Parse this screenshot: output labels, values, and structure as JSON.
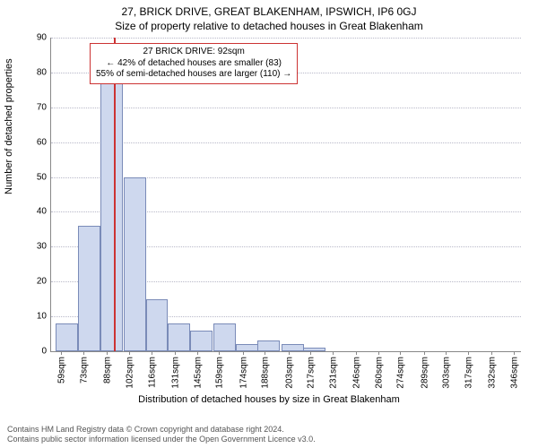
{
  "chart": {
    "type": "histogram",
    "title_line1": "27, BRICK DRIVE, GREAT BLAKENHAM, IPSWICH, IP6 0GJ",
    "title_line2": "Size of property relative to detached houses in Great Blakenham",
    "y_axis_label": "Number of detached properties",
    "x_axis_label": "Distribution of detached houses by size in Great Blakenham",
    "x_min": 52,
    "x_max": 350,
    "y_min": 0,
    "y_max": 90,
    "y_tick_step": 10,
    "y_ticks": [
      0,
      10,
      20,
      30,
      40,
      50,
      60,
      70,
      80,
      90
    ],
    "x_tick_labels": [
      "59sqm",
      "73sqm",
      "88sqm",
      "102sqm",
      "116sqm",
      "131sqm",
      "145sqm",
      "159sqm",
      "174sqm",
      "188sqm",
      "203sqm",
      "217sqm",
      "231sqm",
      "246sqm",
      "260sqm",
      "274sqm",
      "289sqm",
      "303sqm",
      "317sqm",
      "332sqm",
      "346sqm"
    ],
    "x_tick_positions": [
      59,
      73,
      88,
      102,
      116,
      131,
      145,
      159,
      174,
      188,
      203,
      217,
      231,
      246,
      260,
      274,
      289,
      303,
      317,
      332,
      346
    ],
    "bin_width": 14.2,
    "bars": [
      {
        "x": 55,
        "h": 8
      },
      {
        "x": 69,
        "h": 36
      },
      {
        "x": 83.5,
        "h": 83
      },
      {
        "x": 98,
        "h": 50
      },
      {
        "x": 112,
        "h": 15
      },
      {
        "x": 126,
        "h": 8
      },
      {
        "x": 140,
        "h": 6
      },
      {
        "x": 155,
        "h": 8
      },
      {
        "x": 169,
        "h": 2
      },
      {
        "x": 183,
        "h": 3
      },
      {
        "x": 198,
        "h": 2
      },
      {
        "x": 212,
        "h": 1
      },
      {
        "x": 226,
        "h": 0
      },
      {
        "x": 240,
        "h": 0
      },
      {
        "x": 255,
        "h": 0
      },
      {
        "x": 269,
        "h": 0
      },
      {
        "x": 283,
        "h": 0
      },
      {
        "x": 298,
        "h": 0
      },
      {
        "x": 312,
        "h": 0
      },
      {
        "x": 326,
        "h": 0
      },
      {
        "x": 340,
        "h": 0
      }
    ],
    "bar_fill": "#ced8ee",
    "bar_stroke": "#7a8bb8",
    "grid_color": "#b8b8c8",
    "background_color": "#ffffff",
    "marker_value": 92,
    "marker_color": "#cc3333",
    "annotation": {
      "line1": "27 BRICK DRIVE: 92sqm",
      "line2": "← 42% of detached houses are smaller (83)",
      "line3": "55% of semi-detached houses are larger (110) →"
    }
  },
  "footer": {
    "line1": "Contains HM Land Registry data © Crown copyright and database right 2024.",
    "line2": "Contains public sector information licensed under the Open Government Licence v3.0."
  }
}
